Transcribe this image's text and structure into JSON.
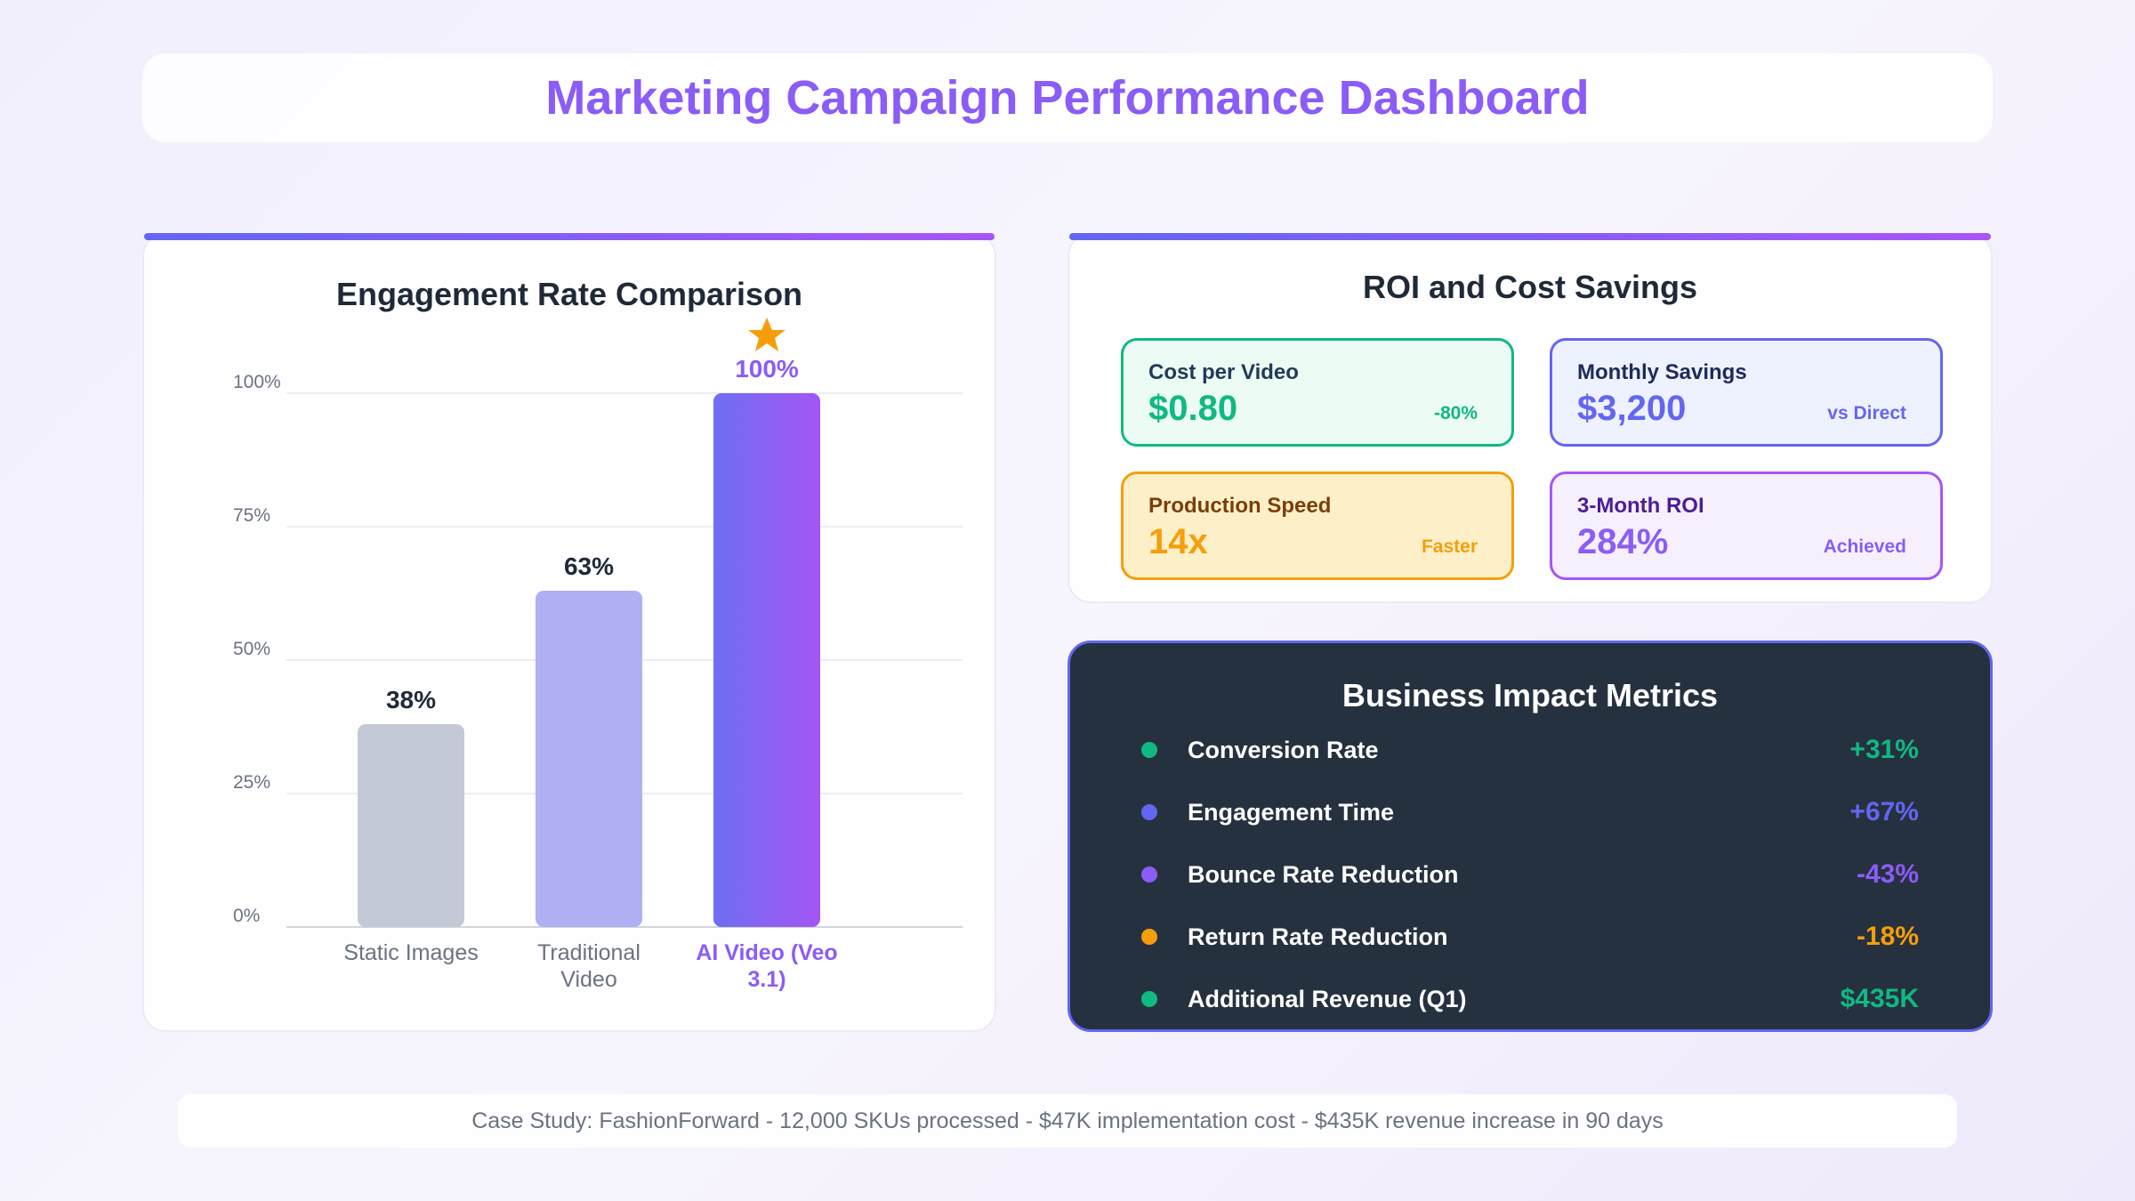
{
  "header": {
    "title": "Marketing Campaign Performance Dashboard"
  },
  "chart_data": {
    "type": "bar",
    "title": "Engagement Rate Comparison",
    "categories": [
      "Static Images",
      "Traditional Video",
      "AI Video (Veo 3.1)"
    ],
    "values": [
      38,
      63,
      100
    ],
    "value_labels": [
      "38%",
      "63%",
      "100%"
    ],
    "colors": [
      "#c3c9d6",
      "#aeb0f3",
      "#8b5cf6"
    ],
    "ylim": [
      0,
      100
    ],
    "yticks": [
      {
        "value": 0,
        "label": "0%"
      },
      {
        "value": 25,
        "label": "25%"
      },
      {
        "value": 50,
        "label": "50%"
      },
      {
        "value": 75,
        "label": "75%"
      },
      {
        "value": 100,
        "label": "100%"
      }
    ],
    "grid": true
  },
  "roi": {
    "title": "ROI and Cost Savings",
    "cards": [
      {
        "label": "Cost per Video",
        "value": "$0.80",
        "note": "-80%"
      },
      {
        "label": "Monthly Savings",
        "value": "$3,200",
        "note": "vs Direct"
      },
      {
        "label": "Production Speed",
        "value": "14x",
        "note": "Faster"
      },
      {
        "label": "3-Month ROI",
        "value": "284%",
        "note": "Achieved"
      }
    ]
  },
  "impact": {
    "title": "Business Impact Metrics",
    "rows": [
      {
        "label": "Conversion Rate",
        "value": "+31%"
      },
      {
        "label": "Engagement Time",
        "value": "+67%"
      },
      {
        "label": "Bounce Rate Reduction",
        "value": "-43%"
      },
      {
        "label": "Return Rate Reduction",
        "value": "-18%"
      },
      {
        "label": "Additional Revenue (Q1)",
        "value": "$435K"
      }
    ]
  },
  "footer": {
    "text": "Case Study: FashionForward - 12,000 SKUs processed - $47K implementation cost - $435K revenue increase in 90 days"
  }
}
